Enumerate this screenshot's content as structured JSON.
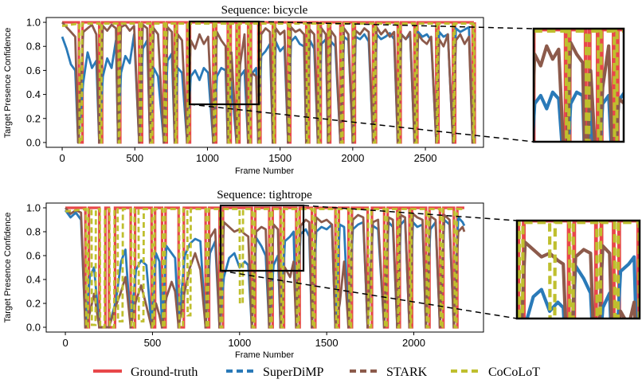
{
  "colors": {
    "ground_truth": "#e8474a",
    "superdimp": "#2a7ab8",
    "stark": "#8c5a4b",
    "cocolot": "#bfbf2e"
  },
  "legend": {
    "items": [
      {
        "key": "ground_truth",
        "label": "Ground-truth",
        "style": "solid"
      },
      {
        "key": "superdimp",
        "label": "SuperDiMP",
        "style": "dashed"
      },
      {
        "key": "stark",
        "label": "STARK",
        "style": "dashed"
      },
      {
        "key": "cocolot",
        "label": "CoCoLoT",
        "style": "dashed"
      }
    ]
  },
  "chart_data": [
    {
      "type": "line",
      "title": "Sequence: bicycle",
      "xlabel": "Frame Number",
      "ylabel": "Target Presence Confidence",
      "xlim": [
        -110,
        2900
      ],
      "ylim": [
        -0.04,
        1.04
      ],
      "xticks": [
        0,
        500,
        1000,
        1500,
        2000,
        2500
      ],
      "yticks": [
        0.0,
        0.2,
        0.4,
        0.6,
        0.8,
        1.0
      ],
      "ytick_labels": [
        "0.0",
        "0.2",
        "0.4",
        "0.6",
        "0.8",
        "1.0"
      ],
      "frames": 2840,
      "absent_intervals": [
        [
          115,
          140
        ],
        [
          255,
          275
        ],
        [
          385,
          400
        ],
        [
          530,
          550
        ],
        [
          605,
          625
        ],
        [
          700,
          720
        ],
        [
          775,
          790
        ],
        [
          860,
          880
        ],
        [
          1040,
          1060
        ],
        [
          1140,
          1160
        ],
        [
          1200,
          1220
        ],
        [
          1280,
          1300
        ],
        [
          1350,
          1365
        ],
        [
          1450,
          1465
        ],
        [
          1555,
          1570
        ],
        [
          1680,
          1700
        ],
        [
          1760,
          1780
        ],
        [
          1830,
          1845
        ],
        [
          1915,
          1935
        ],
        [
          2000,
          2015
        ],
        [
          2140,
          2160
        ],
        [
          2310,
          2330
        ],
        [
          2425,
          2445
        ],
        [
          2575,
          2590
        ],
        [
          2690,
          2705
        ],
        [
          2825,
          2840
        ]
      ],
      "superdimp": {
        "x": [
          0,
          30,
          60,
          90,
          110,
          145,
          175,
          205,
          235,
          255,
          280,
          310,
          340,
          370,
          385,
          405,
          435,
          465,
          495,
          530,
          555,
          585,
          605,
          630,
          660,
          700,
          725,
          755,
          775,
          795,
          825,
          860,
          885,
          915,
          945,
          975,
          1005,
          1040,
          1065,
          1095,
          1125,
          1140,
          1165,
          1200,
          1225,
          1255,
          1280,
          1305,
          1335,
          1350,
          1370,
          1400,
          1430,
          1450,
          1470,
          1500,
          1530,
          1555,
          1575,
          1605,
          1635,
          1665,
          1680,
          1705,
          1735,
          1760,
          1785,
          1815,
          1830,
          1850,
          1880,
          1915,
          1940,
          1970,
          2000,
          2020,
          2050,
          2080,
          2110,
          2140,
          2165,
          2195,
          2225,
          2255,
          2285,
          2310,
          2335,
          2365,
          2395,
          2425,
          2450,
          2480,
          2510,
          2540,
          2575,
          2595,
          2625,
          2655,
          2690,
          2710,
          2740,
          2770,
          2800,
          2825,
          2840
        ],
        "y": [
          0.88,
          0.78,
          0.65,
          0.6,
          0.0,
          0.5,
          0.75,
          0.62,
          0.68,
          0.0,
          0.55,
          0.7,
          0.62,
          0.85,
          0.0,
          0.58,
          0.72,
          0.66,
          0.9,
          0.0,
          0.78,
          0.85,
          0.0,
          0.62,
          0.55,
          0.0,
          0.68,
          0.74,
          0.0,
          0.62,
          0.58,
          0.0,
          0.55,
          0.6,
          0.52,
          0.62,
          0.58,
          0.0,
          0.55,
          0.62,
          0.6,
          0.0,
          0.5,
          0.0,
          0.55,
          0.6,
          0.0,
          0.57,
          0.62,
          0.0,
          0.72,
          0.76,
          0.82,
          0.0,
          0.84,
          0.76,
          0.8,
          0.0,
          0.84,
          0.88,
          0.82,
          0.8,
          0.0,
          0.85,
          0.78,
          0.0,
          0.82,
          0.86,
          0.0,
          0.84,
          0.8,
          0.0,
          0.88,
          0.85,
          0.0,
          0.88,
          0.86,
          0.9,
          0.84,
          0.0,
          0.9,
          0.86,
          0.88,
          0.91,
          0.86,
          0.0,
          0.9,
          0.86,
          0.9,
          0.0,
          0.92,
          0.88,
          0.9,
          0.85,
          0.0,
          0.92,
          0.88,
          0.9,
          0.0,
          0.95,
          0.92,
          0.94,
          0.96,
          0.0,
          0.05
        ]
      },
      "stark": {
        "x": [
          0,
          30,
          60,
          90,
          110,
          145,
          175,
          205,
          235,
          255,
          280,
          310,
          340,
          370,
          385,
          405,
          435,
          465,
          495,
          530,
          555,
          585,
          605,
          630,
          660,
          700,
          725,
          755,
          775,
          795,
          825,
          860,
          885,
          915,
          945,
          975,
          1005,
          1040,
          1065,
          1095,
          1125,
          1140,
          1165,
          1200,
          1225,
          1255,
          1280,
          1305,
          1335,
          1350,
          1370,
          1400,
          1430,
          1450,
          1470,
          1500,
          1530,
          1555,
          1575,
          1605,
          1635,
          1665,
          1680,
          1705,
          1735,
          1760,
          1785,
          1815,
          1830,
          1850,
          1880,
          1915,
          1940,
          1970,
          2000,
          2020,
          2050,
          2080,
          2110,
          2140,
          2165,
          2195,
          2225,
          2255,
          2285,
          2310,
          2335,
          2365,
          2395,
          2425,
          2450,
          2480,
          2510,
          2540,
          2575,
          2595,
          2625,
          2655,
          2690,
          2710,
          2740,
          2770,
          2800,
          2825,
          2840
        ],
        "y": [
          1.0,
          0.96,
          0.92,
          0.88,
          0.0,
          0.92,
          0.95,
          0.98,
          0.9,
          0.0,
          0.97,
          0.93,
          0.98,
          0.95,
          0.0,
          0.96,
          0.98,
          0.93,
          0.97,
          0.0,
          0.98,
          0.95,
          0.0,
          0.95,
          0.9,
          0.0,
          0.96,
          0.92,
          0.0,
          0.9,
          0.85,
          0.0,
          0.85,
          0.78,
          0.9,
          0.82,
          0.88,
          0.0,
          0.92,
          0.85,
          0.8,
          0.0,
          0.75,
          0.0,
          0.65,
          0.9,
          0.0,
          0.58,
          0.55,
          0.0,
          0.9,
          0.95,
          0.92,
          0.0,
          0.95,
          0.9,
          0.93,
          0.0,
          0.96,
          0.92,
          0.94,
          0.9,
          0.0,
          0.94,
          0.9,
          0.0,
          0.95,
          0.9,
          0.0,
          0.93,
          0.88,
          0.0,
          0.95,
          0.9,
          0.0,
          0.93,
          0.9,
          0.95,
          0.92,
          0.0,
          0.96,
          0.9,
          0.94,
          0.88,
          0.92,
          0.0,
          0.9,
          0.86,
          0.92,
          0.0,
          0.9,
          0.85,
          0.82,
          0.88,
          0.0,
          0.86,
          0.8,
          0.9,
          0.0,
          0.85,
          0.9,
          0.82,
          0.88,
          0.0,
          0.4
        ]
      },
      "inset": {
        "xlim": [
          880,
          1330
        ],
        "ylim": [
          0.32,
          1.0
        ]
      }
    },
    {
      "type": "line",
      "title": "Sequence: tightrope",
      "xlabel": "Frame Number",
      "ylabel": "Target Presence Confidence",
      "xlim": [
        -110,
        2400
      ],
      "ylim": [
        -0.04,
        1.04
      ],
      "xticks": [
        0,
        500,
        1000,
        1500,
        2000
      ],
      "yticks": [
        0.0,
        0.2,
        0.4,
        0.6,
        0.8,
        1.0
      ],
      "ytick_labels": [
        "0.0",
        "0.2",
        "0.4",
        "0.6",
        "0.8",
        "1.0"
      ],
      "frames": 2290,
      "absent_intervals": [
        [
          115,
          135
        ],
        [
          195,
          230
        ],
        [
          250,
          285
        ],
        [
          375,
          400
        ],
        [
          495,
          515
        ],
        [
          555,
          575
        ],
        [
          650,
          680
        ],
        [
          805,
          825
        ],
        [
          885,
          905
        ],
        [
          1070,
          1090
        ],
        [
          1170,
          1190
        ],
        [
          1235,
          1255
        ],
        [
          1325,
          1345
        ],
        [
          1415,
          1435
        ],
        [
          1550,
          1570
        ],
        [
          1625,
          1645
        ],
        [
          1735,
          1760
        ],
        [
          1830,
          1850
        ],
        [
          1905,
          1920
        ],
        [
          1975,
          1990
        ],
        [
          2070,
          2090
        ],
        [
          2150,
          2170
        ],
        [
          2230,
          2250
        ]
      ],
      "superdimp": {
        "x": [
          0,
          30,
          60,
          90,
          115,
          140,
          165,
          195,
          235,
          250,
          290,
          320,
          345,
          375,
          405,
          435,
          465,
          495,
          520,
          540,
          555,
          580,
          610,
          630,
          650,
          685,
          715,
          745,
          775,
          805,
          830,
          860,
          885,
          910,
          940,
          970,
          1000,
          1030,
          1050,
          1070,
          1095,
          1125,
          1150,
          1170,
          1195,
          1220,
          1235,
          1260,
          1290,
          1310,
          1325,
          1350,
          1380,
          1400,
          1415,
          1440,
          1470,
          1500,
          1530,
          1550,
          1575,
          1600,
          1625,
          1650,
          1680,
          1710,
          1735,
          1765,
          1795,
          1830,
          1855,
          1880,
          1905,
          1925,
          1950,
          1975,
          1995,
          2020,
          2050,
          2070,
          2095,
          2125,
          2150,
          2175,
          2205,
          2230,
          2255,
          2280,
          2290
        ],
        "y": [
          0.98,
          0.92,
          0.96,
          0.9,
          0.0,
          0.42,
          0.5,
          0.0,
          0.0,
          0.0,
          0.22,
          0.55,
          0.65,
          0.0,
          0.48,
          0.56,
          0.52,
          0.0,
          0.62,
          0.55,
          0.0,
          0.68,
          0.62,
          0.58,
          0.0,
          0.6,
          0.7,
          0.74,
          0.72,
          0.0,
          0.62,
          0.72,
          0.0,
          0.42,
          0.58,
          0.62,
          0.5,
          0.55,
          0.52,
          0.0,
          0.75,
          0.68,
          0.6,
          0.0,
          0.52,
          0.6,
          0.0,
          0.72,
          0.76,
          0.8,
          0.0,
          0.78,
          0.82,
          0.76,
          0.0,
          0.8,
          0.84,
          0.82,
          0.86,
          0.0,
          0.86,
          0.84,
          0.0,
          0.82,
          0.86,
          0.88,
          0.0,
          0.85,
          0.82,
          0.0,
          0.88,
          0.84,
          0.0,
          0.86,
          0.9,
          0.0,
          0.88,
          0.84,
          0.86,
          0.0,
          0.82,
          0.88,
          0.0,
          0.9,
          0.86,
          0.0,
          0.92,
          0.88,
          0.85
        ]
      },
      "stark": {
        "x": [
          0,
          30,
          60,
          90,
          115,
          140,
          165,
          195,
          235,
          250,
          290,
          320,
          345,
          375,
          405,
          435,
          465,
          495,
          520,
          540,
          555,
          580,
          610,
          630,
          650,
          685,
          715,
          745,
          775,
          805,
          830,
          860,
          885,
          910,
          940,
          970,
          1000,
          1030,
          1050,
          1070,
          1095,
          1125,
          1150,
          1170,
          1195,
          1220,
          1235,
          1260,
          1290,
          1310,
          1325,
          1350,
          1380,
          1400,
          1415,
          1440,
          1470,
          1500,
          1530,
          1550,
          1575,
          1600,
          1625,
          1650,
          1680,
          1710,
          1735,
          1765,
          1795,
          1830,
          1855,
          1880,
          1905,
          1925,
          1950,
          1975,
          1995,
          2020,
          2050,
          2070,
          2095,
          2125,
          2150,
          2175,
          2205,
          2230,
          2255,
          2280,
          2290
        ],
        "y": [
          1.0,
          0.95,
          0.98,
          0.96,
          0.0,
          0.12,
          0.28,
          0.0,
          0.0,
          0.0,
          0.18,
          0.3,
          0.42,
          0.0,
          0.22,
          0.35,
          0.18,
          0.0,
          0.2,
          0.1,
          0.0,
          0.25,
          0.38,
          0.3,
          0.0,
          0.3,
          0.5,
          0.62,
          0.48,
          0.0,
          0.75,
          0.82,
          0.0,
          0.88,
          0.84,
          0.8,
          0.82,
          0.78,
          0.76,
          0.0,
          0.8,
          0.84,
          0.82,
          0.0,
          0.86,
          0.82,
          0.0,
          0.5,
          0.42,
          0.55,
          0.0,
          0.85,
          0.9,
          0.88,
          0.0,
          0.92,
          0.88,
          0.9,
          0.86,
          0.0,
          0.2,
          0.55,
          0.0,
          0.9,
          0.94,
          0.92,
          0.0,
          0.88,
          0.9,
          0.0,
          0.92,
          0.9,
          0.0,
          0.94,
          0.92,
          0.0,
          0.95,
          0.92,
          0.9,
          0.0,
          0.93,
          0.9,
          0.0,
          0.94,
          0.9,
          0.0,
          0.8,
          0.84,
          0.8
        ]
      },
      "cocolot_extra_dips": [
        [
          150,
          175,
          0.02
        ],
        [
          300,
          330,
          0.05
        ],
        [
          420,
          450,
          0.05
        ],
        [
          700,
          720,
          0.1
        ],
        [
          1000,
          1020,
          0.2
        ]
      ],
      "inset": {
        "xlim": [
          880,
          1330
        ],
        "ylim": [
          0.46,
          1.0
        ]
      }
    }
  ]
}
